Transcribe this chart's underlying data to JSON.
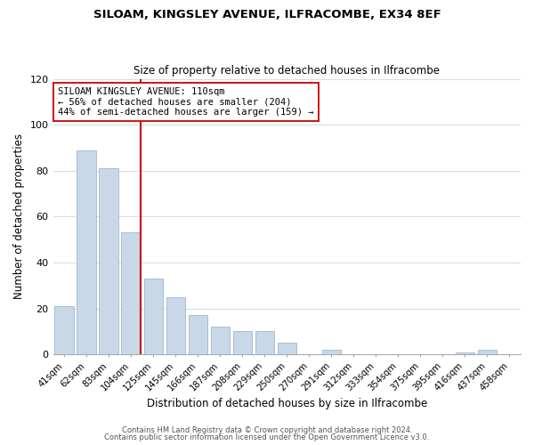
{
  "title": "SILOAM, KINGSLEY AVENUE, ILFRACOMBE, EX34 8EF",
  "subtitle": "Size of property relative to detached houses in Ilfracombe",
  "xlabel": "Distribution of detached houses by size in Ilfracombe",
  "ylabel": "Number of detached properties",
  "bar_color": "#c8d8e8",
  "bar_edge_color": "#a0b8cc",
  "categories": [
    "41sqm",
    "62sqm",
    "83sqm",
    "104sqm",
    "125sqm",
    "145sqm",
    "166sqm",
    "187sqm",
    "208sqm",
    "229sqm",
    "250sqm",
    "270sqm",
    "291sqm",
    "312sqm",
    "333sqm",
    "354sqm",
    "375sqm",
    "395sqm",
    "416sqm",
    "437sqm",
    "458sqm"
  ],
  "values": [
    21,
    89,
    81,
    53,
    33,
    25,
    17,
    12,
    10,
    10,
    5,
    0,
    2,
    0,
    0,
    0,
    0,
    0,
    1,
    2,
    0
  ],
  "ylim": [
    0,
    120
  ],
  "yticks": [
    0,
    20,
    40,
    60,
    80,
    100,
    120
  ],
  "red_line_index": 3,
  "annotation_line1": "SILOAM KINGSLEY AVENUE: 110sqm",
  "annotation_line2": "← 56% of detached houses are smaller (204)",
  "annotation_line3": "44% of semi-detached houses are larger (159) →",
  "annotation_box_color": "#ffffff",
  "annotation_box_edge": "#cc0000",
  "red_line_color": "#cc0000",
  "footer_line1": "Contains HM Land Registry data © Crown copyright and database right 2024.",
  "footer_line2": "Contains public sector information licensed under the Open Government Licence v3.0.",
  "background_color": "#ffffff",
  "grid_color": "#d4dde6"
}
